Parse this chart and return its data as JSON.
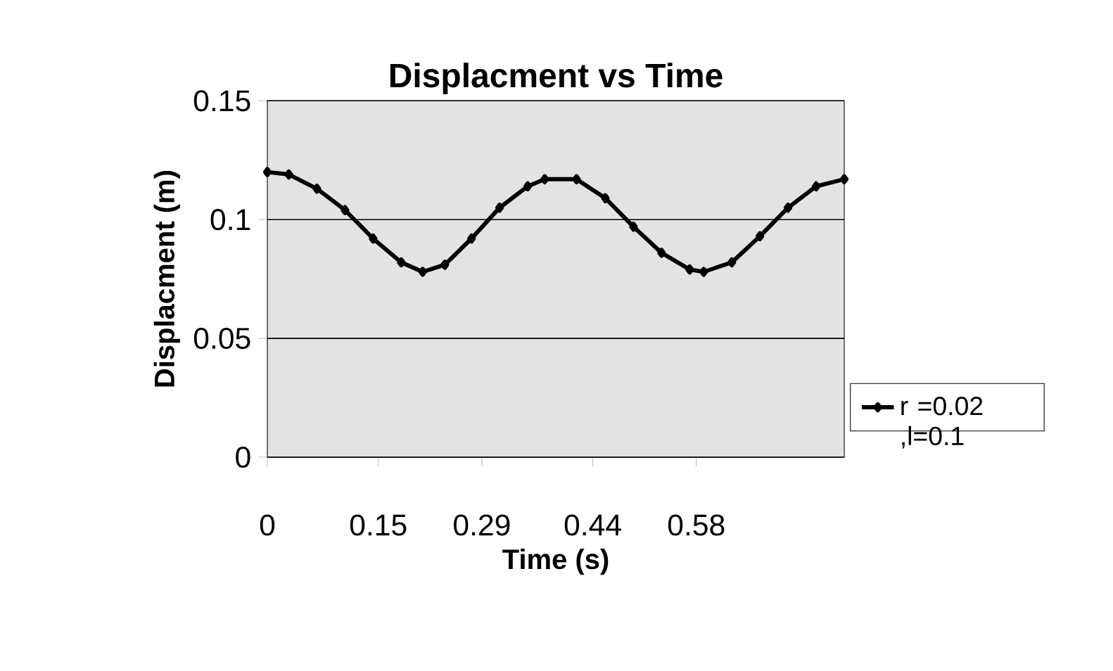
{
  "chart_data": {
    "type": "line",
    "title": "Displacment vs Time",
    "xlabel": "Time (s)",
    "ylabel": "Displacment (m)",
    "xlim": [
      0,
      0.78
    ],
    "ylim": [
      0,
      0.15
    ],
    "xticks": [
      0,
      0.15,
      0.29,
      0.44,
      0.58
    ],
    "yticks": [
      0,
      0.05,
      0.1,
      0.15
    ],
    "grid": "y",
    "legend": "right",
    "marker": "diamond",
    "line_style": "solid",
    "x": [
      0,
      0.029,
      0.067,
      0.105,
      0.143,
      0.181,
      0.21,
      0.24,
      0.276,
      0.314,
      0.352,
      0.375,
      0.418,
      0.457,
      0.495,
      0.533,
      0.571,
      0.59,
      0.628,
      0.666,
      0.704,
      0.742,
      0.78
    ],
    "series": [
      {
        "name": "r =0.02 ,l=0.1",
        "color": "#000000",
        "values": [
          0.12,
          0.119,
          0.113,
          0.104,
          0.092,
          0.082,
          0.078,
          0.081,
          0.092,
          0.105,
          0.114,
          0.117,
          0.117,
          0.109,
          0.097,
          0.086,
          0.079,
          0.078,
          0.082,
          0.093,
          0.105,
          0.114,
          0.117
        ]
      }
    ]
  }
}
